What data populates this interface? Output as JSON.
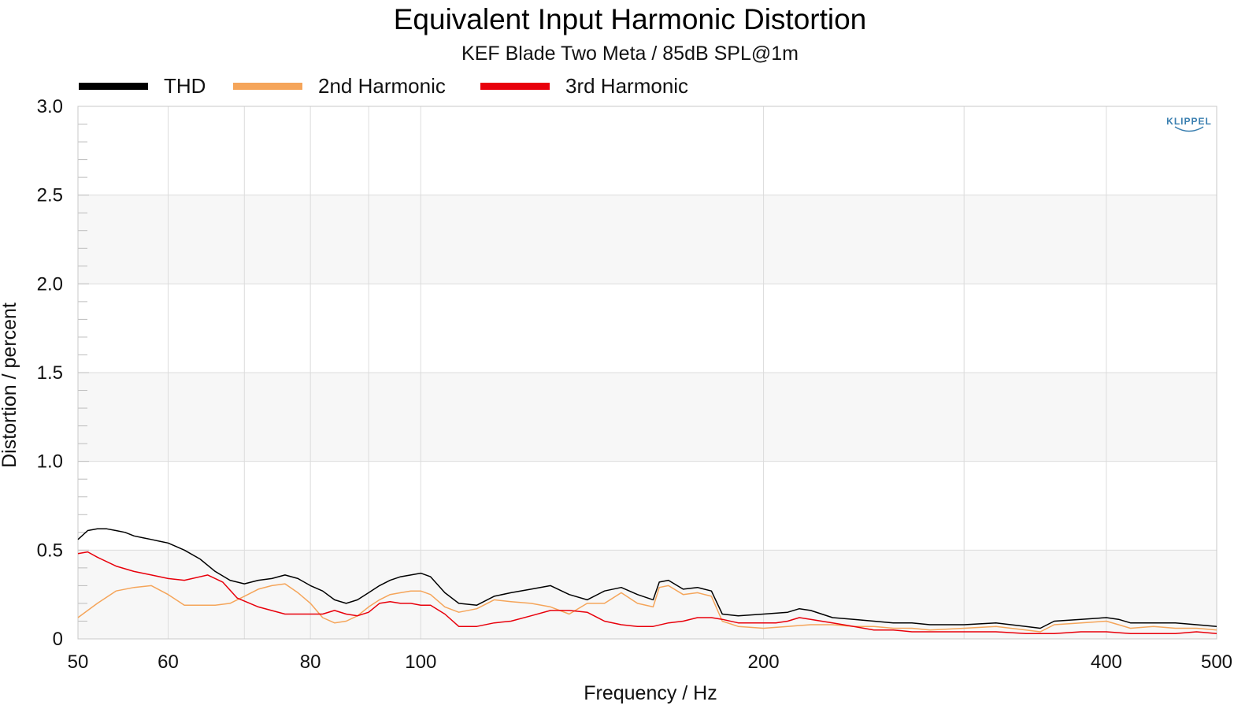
{
  "chart_data": {
    "type": "line",
    "title": "Equivalent Input Harmonic Distortion",
    "subtitle": "KEF Blade Two Meta / 85dB SPL@1m",
    "xlabel": "Frequency / Hz",
    "ylabel": "Distortion / percent",
    "xscale": "log",
    "xlim": [
      50,
      500
    ],
    "ylim": [
      0,
      3.0
    ],
    "x_ticks": [
      50,
      60,
      80,
      100,
      200,
      400,
      500
    ],
    "x_tick_labels": [
      "50",
      "60",
      "80",
      "100",
      "200",
      "400",
      "500"
    ],
    "y_ticks": [
      0,
      0.5,
      1.0,
      1.5,
      2.0,
      2.5,
      3.0
    ],
    "y_tick_labels": [
      "0",
      "0.5",
      "1.0",
      "1.5",
      "2.0",
      "2.5",
      "3.0"
    ],
    "grid": true,
    "legend_position": "top-left",
    "logo_text": "KLIPPEL",
    "series": [
      {
        "name": "THD",
        "color": "#000000",
        "x": [
          50,
          51,
          52,
          53,
          54,
          55,
          56,
          57,
          58,
          59,
          60,
          62,
          64,
          66,
          68,
          70,
          72,
          74,
          76,
          78,
          80,
          82,
          84,
          86,
          88,
          90,
          92,
          94,
          96,
          98,
          100,
          102,
          105,
          108,
          112,
          116,
          120,
          125,
          130,
          135,
          140,
          145,
          150,
          155,
          160,
          162,
          165,
          170,
          175,
          180,
          184,
          190,
          200,
          210,
          215,
          220,
          230,
          240,
          250,
          260,
          270,
          280,
          300,
          320,
          340,
          350,
          360,
          380,
          400,
          410,
          420,
          440,
          460,
          480,
          500
        ],
        "y": [
          0.56,
          0.61,
          0.62,
          0.62,
          0.61,
          0.6,
          0.58,
          0.57,
          0.56,
          0.55,
          0.54,
          0.5,
          0.45,
          0.38,
          0.33,
          0.31,
          0.33,
          0.34,
          0.36,
          0.34,
          0.3,
          0.27,
          0.22,
          0.2,
          0.22,
          0.26,
          0.3,
          0.33,
          0.35,
          0.36,
          0.37,
          0.35,
          0.26,
          0.2,
          0.19,
          0.24,
          0.26,
          0.28,
          0.3,
          0.25,
          0.22,
          0.27,
          0.29,
          0.25,
          0.22,
          0.32,
          0.33,
          0.28,
          0.29,
          0.27,
          0.14,
          0.13,
          0.14,
          0.15,
          0.17,
          0.16,
          0.12,
          0.11,
          0.1,
          0.09,
          0.09,
          0.08,
          0.08,
          0.09,
          0.07,
          0.06,
          0.1,
          0.11,
          0.12,
          0.11,
          0.09,
          0.09,
          0.09,
          0.08,
          0.07
        ]
      },
      {
        "name": "2nd Harmonic",
        "color": "#f5a55a",
        "x": [
          50,
          52,
          54,
          56,
          58,
          60,
          62,
          64,
          66,
          68,
          70,
          72,
          74,
          76,
          78,
          80,
          82,
          84,
          86,
          88,
          90,
          92,
          94,
          96,
          98,
          100,
          102,
          105,
          108,
          112,
          116,
          120,
          125,
          130,
          135,
          140,
          145,
          150,
          155,
          160,
          162,
          165,
          170,
          175,
          180,
          184,
          190,
          200,
          210,
          220,
          230,
          240,
          250,
          260,
          270,
          280,
          300,
          320,
          340,
          350,
          360,
          380,
          400,
          410,
          420,
          440,
          460,
          480,
          500
        ],
        "y": [
          0.12,
          0.2,
          0.27,
          0.29,
          0.3,
          0.25,
          0.19,
          0.19,
          0.19,
          0.2,
          0.24,
          0.28,
          0.3,
          0.31,
          0.26,
          0.2,
          0.12,
          0.09,
          0.1,
          0.13,
          0.18,
          0.22,
          0.25,
          0.26,
          0.27,
          0.27,
          0.25,
          0.18,
          0.15,
          0.17,
          0.22,
          0.21,
          0.2,
          0.18,
          0.14,
          0.2,
          0.2,
          0.26,
          0.2,
          0.18,
          0.29,
          0.3,
          0.25,
          0.26,
          0.24,
          0.1,
          0.07,
          0.06,
          0.07,
          0.08,
          0.08,
          0.07,
          0.07,
          0.06,
          0.06,
          0.05,
          0.06,
          0.07,
          0.05,
          0.04,
          0.08,
          0.09,
          0.1,
          0.08,
          0.06,
          0.07,
          0.06,
          0.06,
          0.05
        ]
      },
      {
        "name": "3rd Harmonic",
        "color": "#e8000b",
        "x": [
          50,
          51,
          52,
          54,
          56,
          58,
          60,
          62,
          63,
          65,
          67,
          69,
          72,
          76,
          79,
          82,
          84,
          86,
          88,
          90,
          92,
          94,
          96,
          98,
          100,
          102,
          105,
          108,
          112,
          116,
          120,
          125,
          130,
          135,
          140,
          145,
          150,
          155,
          160,
          165,
          170,
          175,
          180,
          184,
          190,
          200,
          205,
          210,
          215,
          220,
          230,
          240,
          250,
          260,
          270,
          280,
          300,
          320,
          340,
          360,
          380,
          400,
          420,
          440,
          460,
          480,
          500
        ],
        "y": [
          0.48,
          0.49,
          0.46,
          0.41,
          0.38,
          0.36,
          0.34,
          0.33,
          0.34,
          0.36,
          0.32,
          0.23,
          0.18,
          0.14,
          0.14,
          0.14,
          0.16,
          0.14,
          0.13,
          0.15,
          0.2,
          0.21,
          0.2,
          0.2,
          0.19,
          0.19,
          0.14,
          0.07,
          0.07,
          0.09,
          0.1,
          0.13,
          0.16,
          0.16,
          0.15,
          0.1,
          0.08,
          0.07,
          0.07,
          0.09,
          0.1,
          0.12,
          0.12,
          0.11,
          0.09,
          0.09,
          0.09,
          0.1,
          0.12,
          0.11,
          0.09,
          0.07,
          0.05,
          0.05,
          0.04,
          0.04,
          0.04,
          0.04,
          0.03,
          0.03,
          0.04,
          0.04,
          0.03,
          0.03,
          0.03,
          0.04,
          0.03
        ]
      }
    ]
  }
}
